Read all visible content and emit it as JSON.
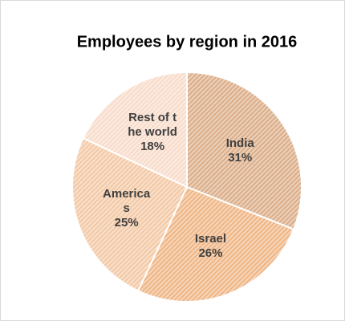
{
  "chart_data": {
    "type": "pie",
    "title": "Employees by region in 2016",
    "categories": [
      "India",
      "Israel",
      "Americas",
      "Rest of the world"
    ],
    "values": [
      31,
      26,
      25,
      18
    ],
    "value_labels": [
      "31%",
      "26%",
      "25%",
      "18%"
    ],
    "colors": [
      "#d9a77f",
      "#eeb07c",
      "#f2c49e",
      "#f8d9c6"
    ]
  }
}
